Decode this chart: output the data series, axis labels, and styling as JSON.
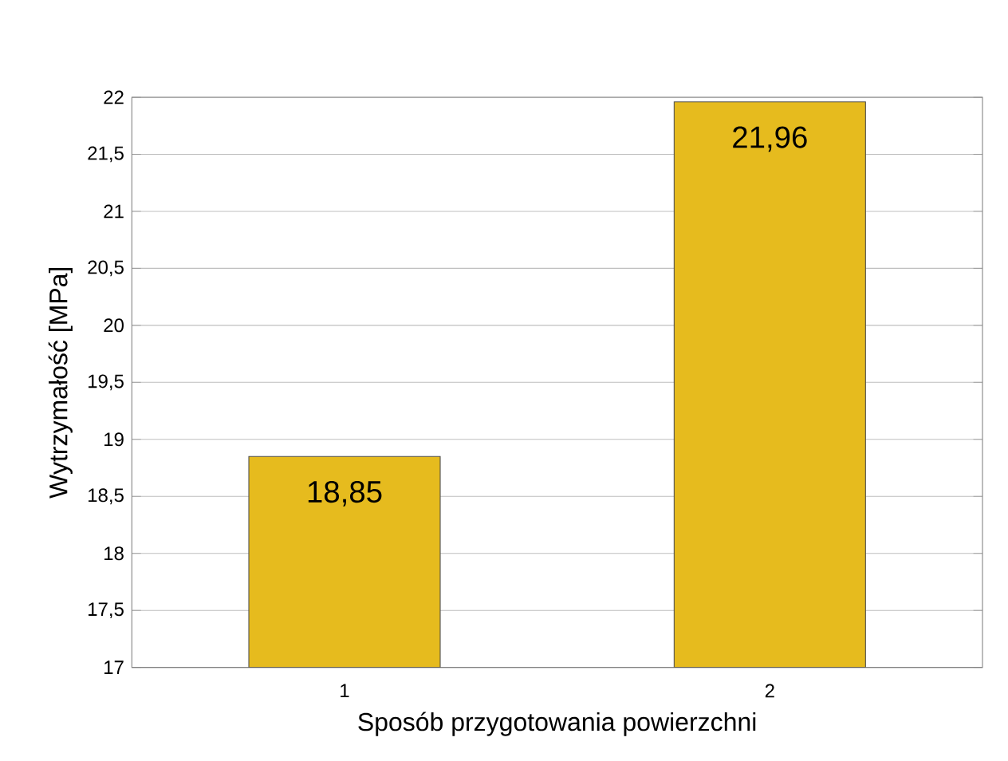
{
  "chart_data": {
    "type": "bar",
    "xlabel": "Sposób przygotowania powierzchni",
    "ylabel": "Wytrzymałość [MPa]",
    "categories": [
      "1",
      "2"
    ],
    "values": [
      18.85,
      21.96
    ],
    "value_labels": [
      "18,85",
      "21,96"
    ],
    "color": "#e6bb1e",
    "ylim": [
      17,
      22
    ],
    "yticks": [
      17,
      {
        "value": 17.5,
        "label": "17,5"
      },
      18,
      {
        "value": 18.5,
        "label": "18,5"
      },
      19,
      {
        "value": 19.5,
        "label": "19,5"
      },
      20,
      {
        "value": 20.5,
        "label": "20,5"
      },
      21,
      {
        "value": 21.5,
        "label": "21,5"
      },
      22
    ],
    "grid": "y"
  }
}
